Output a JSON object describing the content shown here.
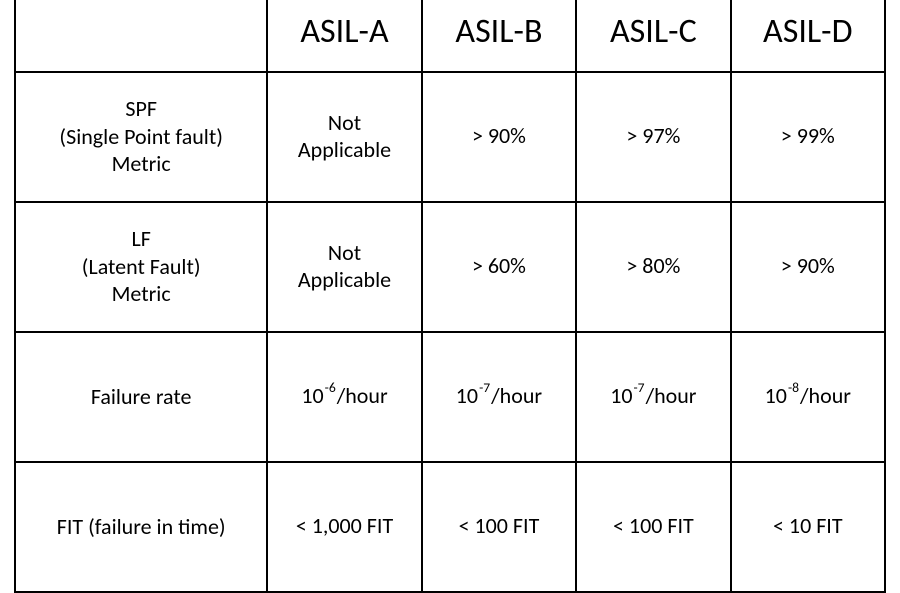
{
  "table": {
    "type": "table",
    "border_color": "#000000",
    "background_color": "#ffffff",
    "text_color": "#000000",
    "font_family": "Calibri",
    "header_fontsize_pt": 26,
    "cell_fontsize_pt": 17,
    "columns": [
      "ASIL-A",
      "ASIL-B",
      "ASIL-C",
      "ASIL-D"
    ],
    "rows": [
      {
        "label_lines": [
          "SPF",
          "(Single Point fault)",
          "Metric"
        ],
        "cells": [
          {
            "text_lines": [
              "Not",
              "Applicable"
            ]
          },
          {
            "text": "> 90%"
          },
          {
            "text": "> 97%"
          },
          {
            "text": "> 99%"
          }
        ]
      },
      {
        "label_lines": [
          "LF",
          "(Latent Fault)",
          "Metric"
        ],
        "cells": [
          {
            "text_lines": [
              "Not",
              "Applicable"
            ]
          },
          {
            "text": "> 60%"
          },
          {
            "text": "> 80%"
          },
          {
            "text": "> 90%"
          }
        ]
      },
      {
        "label_lines": [
          "Failure rate"
        ],
        "cells": [
          {
            "base": "10",
            "exp": "-6",
            "suffix": "/hour"
          },
          {
            "base": "10",
            "exp": "-7",
            "suffix": "/hour"
          },
          {
            "base": "10",
            "exp": "-7",
            "suffix": "/hour"
          },
          {
            "base": "10",
            "exp": "-8",
            "suffix": "/hour"
          }
        ]
      },
      {
        "label_lines": [
          "FIT (failure in time)"
        ],
        "cells": [
          {
            "text": "< 1,000 FIT"
          },
          {
            "text": "< 100 FIT"
          },
          {
            "text": "< 100 FIT"
          },
          {
            "text": "< 10 FIT"
          }
        ]
      }
    ]
  }
}
